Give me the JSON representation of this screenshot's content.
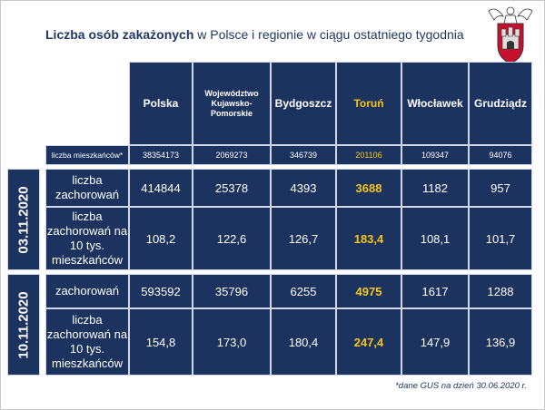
{
  "title": {
    "bold": "Liczba osób zakażonych",
    "rest": " w Polsce i regionie w ciągu ostatniego tygodnia"
  },
  "columns": [
    "Polska",
    "Województwo Kujawsko-Pomorskie",
    "Bydgoszcz",
    "Toruń",
    "Włocławek",
    "Grudziądz"
  ],
  "population": {
    "label": "liczba mieszkańców*",
    "values": [
      "38354173",
      "2069273",
      "346739",
      "201106",
      "109347",
      "94076"
    ]
  },
  "periods": [
    {
      "date": "03.11.2020",
      "rows": [
        {
          "label": "liczba zachorowań",
          "values": [
            "414844",
            "25378",
            "4393",
            "3688",
            "1182",
            "957"
          ]
        },
        {
          "label": "liczba zachorowań na 10 tys. mieszkańców",
          "values": [
            "108,2",
            "122,6",
            "126,7",
            "183,4",
            "108,1",
            "101,7"
          ]
        }
      ]
    },
    {
      "date": "10.11.2020",
      "rows": [
        {
          "label": "zachorowań",
          "values": [
            "593592",
            "35796",
            "6255",
            "4975",
            "1617",
            "1288"
          ]
        },
        {
          "label": "liczba zachorowań na 10 tys. mieszkańców",
          "values": [
            "154,8",
            "173,0",
            "180,4",
            "247,4",
            "147,9",
            "136,9"
          ]
        }
      ]
    }
  ],
  "footnote": "*dane GUS na dzień 30.06.2020 r.",
  "emblem_icon": "torun-coat-of-arms-icon",
  "colors": {
    "table_bg": "#1c3360",
    "highlight": "#f5c518",
    "title": "#1f3864"
  }
}
